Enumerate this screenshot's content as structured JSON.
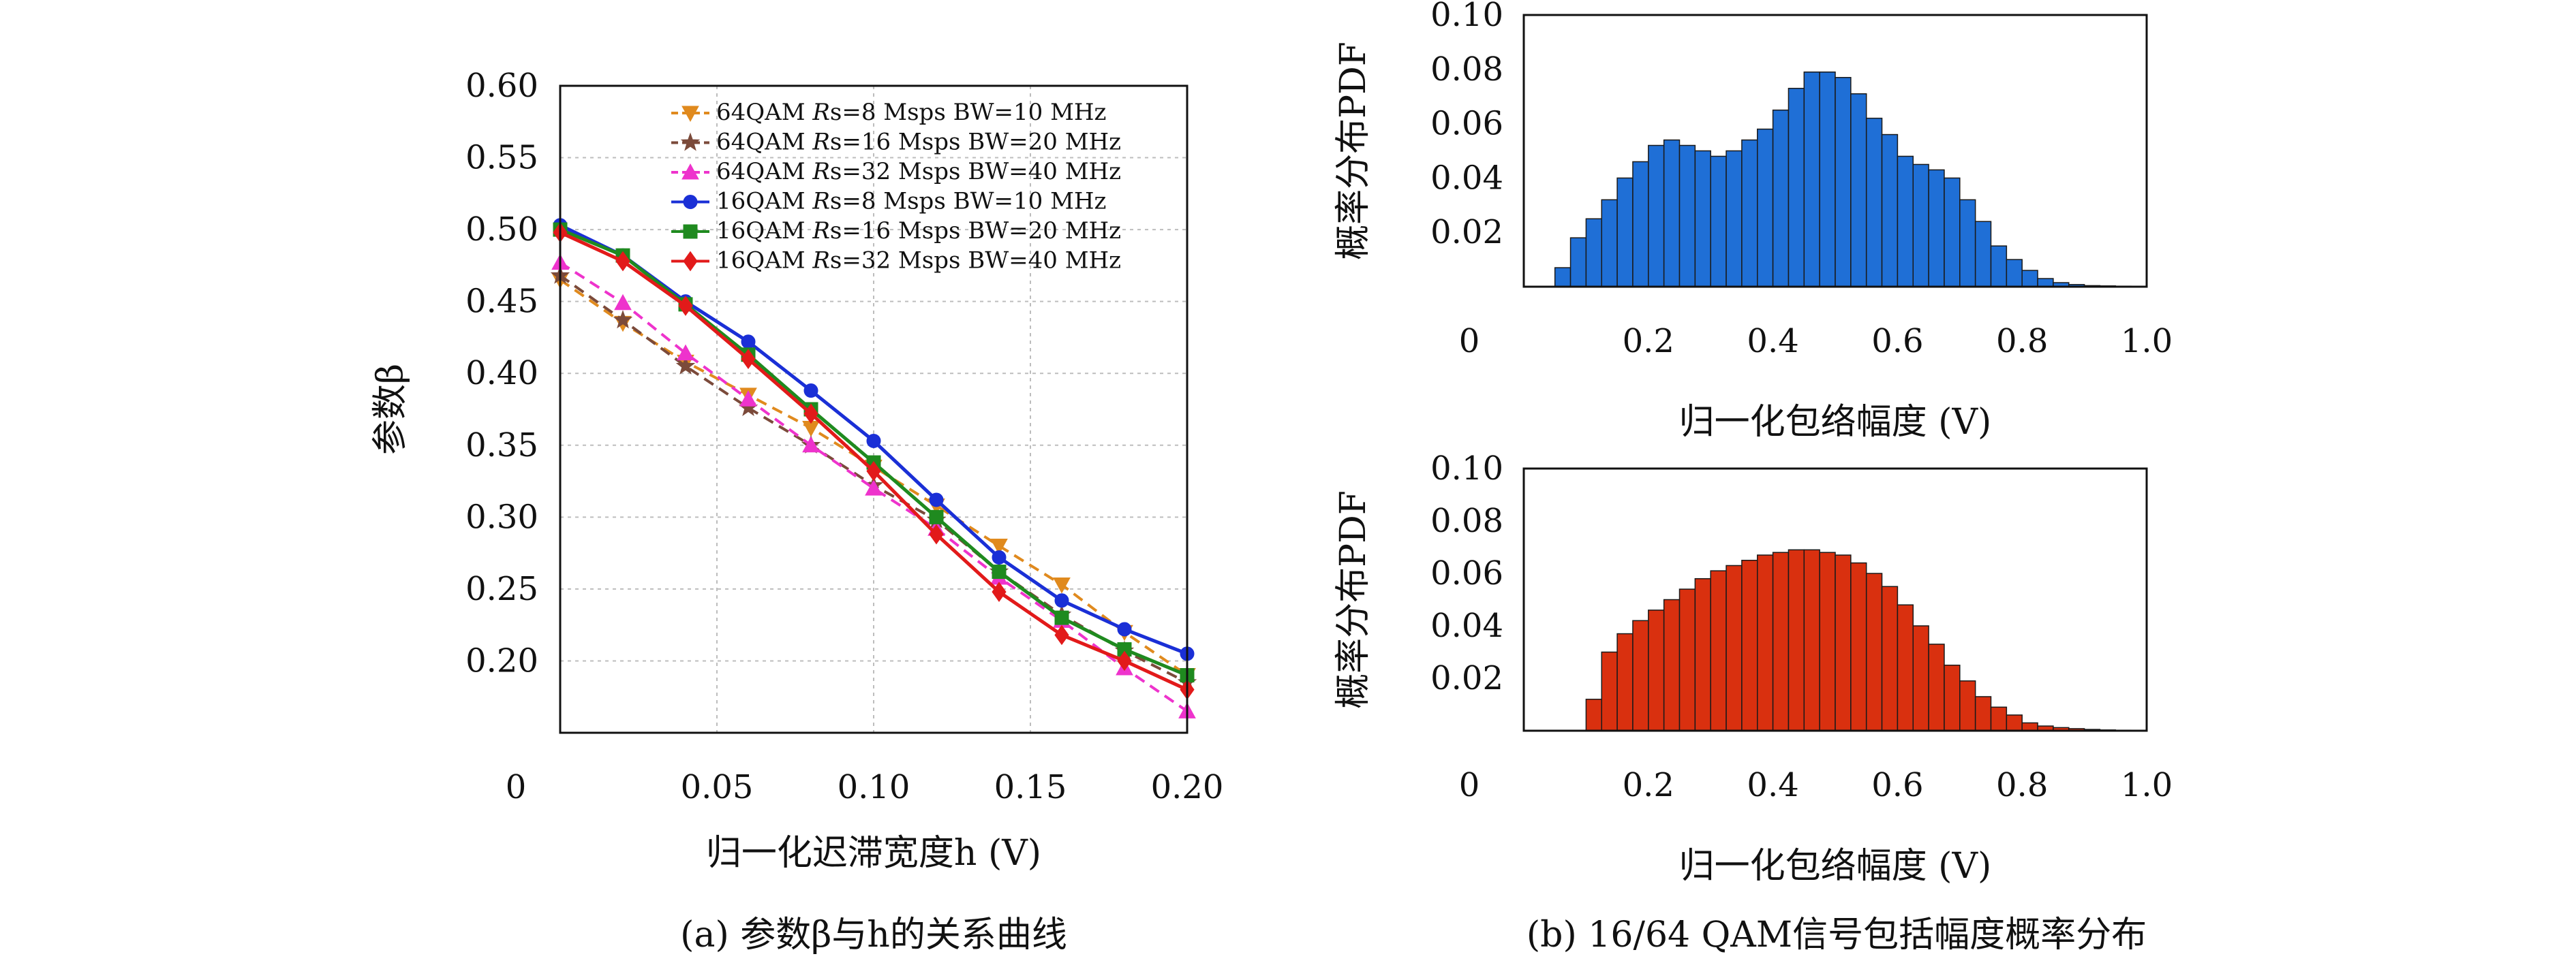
{
  "chart_data": [
    {
      "type": "line",
      "caption": "(a) 参数β与h的关系曲线",
      "xlabel": "归一化迟滞宽度h (V)",
      "ylabel": "参数β",
      "xlim": [
        0,
        0.2
      ],
      "ylim": [
        0.15,
        0.6
      ],
      "grid": true,
      "legend_position": "top-right",
      "x_ticks": [
        "0",
        "0.05",
        "0.10",
        "0.15",
        "0.20"
      ],
      "y_ticks": [
        "0.20",
        "0.25",
        "0.30",
        "0.35",
        "0.40",
        "0.45",
        "0.50",
        "0.55",
        "0.60"
      ],
      "x": [
        0,
        0.02,
        0.04,
        0.06,
        0.08,
        0.1,
        0.12,
        0.14,
        0.16,
        0.18,
        0.2
      ],
      "series": [
        {
          "name": "64QAM Rs=8 Msps BW=10 MHz",
          "color": "#e08a1e",
          "dash": true,
          "marker": "triangle-down",
          "values": [
            0.465,
            0.435,
            0.408,
            0.385,
            0.362,
            0.335,
            0.308,
            0.28,
            0.253,
            0.22,
            0.19
          ]
        },
        {
          "name": "64QAM Rs=16 Msps BW=20 MHz",
          "color": "#7b4a3a",
          "dash": true,
          "marker": "star",
          "values": [
            0.468,
            0.437,
            0.405,
            0.376,
            0.35,
            0.322,
            0.298,
            0.262,
            0.232,
            0.207,
            0.185
          ]
        },
        {
          "name": "64QAM Rs=32 Msps BW=40 MHz",
          "color": "#ee33cc",
          "dash": true,
          "marker": "triangle-up",
          "values": [
            0.477,
            0.449,
            0.414,
            0.382,
            0.35,
            0.32,
            0.292,
            0.258,
            0.228,
            0.195,
            0.165
          ]
        },
        {
          "name": "16QAM Rs=8 Msps BW=10 MHz",
          "color": "#1a2fd6",
          "dash": false,
          "marker": "circle",
          "values": [
            0.503,
            0.482,
            0.45,
            0.422,
            0.388,
            0.353,
            0.312,
            0.272,
            0.242,
            0.222,
            0.205
          ]
        },
        {
          "name": "16QAM Rs=16 Msps BW=20 MHz",
          "color": "#1f8a1f",
          "dash": false,
          "marker": "square",
          "values": [
            0.5,
            0.482,
            0.448,
            0.413,
            0.375,
            0.338,
            0.3,
            0.262,
            0.23,
            0.208,
            0.19
          ]
        },
        {
          "name": "16QAM Rs=32 Msps BW=40 MHz",
          "color": "#e21a1a",
          "dash": false,
          "marker": "diamond",
          "values": [
            0.498,
            0.478,
            0.447,
            0.41,
            0.372,
            0.332,
            0.288,
            0.248,
            0.218,
            0.2,
            0.18
          ]
        }
      ],
      "legend_labels": [
        {
          "prefix": "64QAM ",
          "r": "R",
          "suffix": "s=8 Msps BW=10 MHz"
        },
        {
          "prefix": "64QAM ",
          "r": "R",
          "suffix": "s=16 Msps BW=20 MHz"
        },
        {
          "prefix": "64QAM ",
          "r": "R",
          "suffix": "s=32 Msps BW=40 MHz"
        },
        {
          "prefix": "16QAM ",
          "r": "R",
          "suffix": "s=8 Msps BW=10 MHz"
        },
        {
          "prefix": "16QAM ",
          "r": "R",
          "suffix": "s=16 Msps BW=20 MHz"
        },
        {
          "prefix": "16QAM ",
          "r": "R",
          "suffix": "s=32 Msps BW=40 MHz"
        }
      ]
    },
    {
      "type": "bar",
      "xlabel": "归一化包络幅度 (V)",
      "ylabel": "概率分布PDF",
      "xlim": [
        0,
        1.0
      ],
      "ylim": [
        0,
        0.1
      ],
      "color": "#1f6fd6",
      "x_ticks": [
        "0",
        "0.2",
        "0.4",
        "0.6",
        "0.8",
        "1.0"
      ],
      "y_ticks": [
        "0.02",
        "0.04",
        "0.06",
        "0.08",
        "0.10"
      ],
      "bin_width": 0.025,
      "bin_start": 0.05,
      "values": [
        0.007,
        0.018,
        0.025,
        0.032,
        0.04,
        0.046,
        0.052,
        0.054,
        0.052,
        0.05,
        0.048,
        0.05,
        0.054,
        0.058,
        0.065,
        0.073,
        0.079,
        0.079,
        0.077,
        0.071,
        0.062,
        0.056,
        0.048,
        0.045,
        0.043,
        0.04,
        0.032,
        0.024,
        0.015,
        0.01,
        0.006,
        0.003,
        0.0015,
        0.0008,
        0.0004,
        0.0003,
        0.0002,
        0.0001
      ]
    },
    {
      "type": "bar",
      "xlabel": "归一化包络幅度 (V)",
      "ylabel": "概率分布PDF",
      "xlim": [
        0,
        1.0
      ],
      "ylim": [
        0,
        0.1
      ],
      "color": "#d9300f",
      "x_ticks": [
        "0",
        "0.2",
        "0.4",
        "0.6",
        "0.8",
        "1.0"
      ],
      "y_ticks": [
        "0.02",
        "0.04",
        "0.06",
        "0.08",
        "0.10"
      ],
      "bin_width": 0.025,
      "bin_start": 0.1,
      "values": [
        0.012,
        0.03,
        0.037,
        0.042,
        0.046,
        0.05,
        0.054,
        0.058,
        0.061,
        0.063,
        0.065,
        0.067,
        0.068,
        0.069,
        0.069,
        0.068,
        0.067,
        0.064,
        0.06,
        0.055,
        0.048,
        0.04,
        0.033,
        0.025,
        0.019,
        0.013,
        0.009,
        0.006,
        0.003,
        0.0018,
        0.0012,
        0.0008,
        0.0005,
        0.0003,
        0.0002,
        0.0001
      ]
    }
  ],
  "caption_b": "(b) 16/64 QAM信号包括幅度概率分布"
}
